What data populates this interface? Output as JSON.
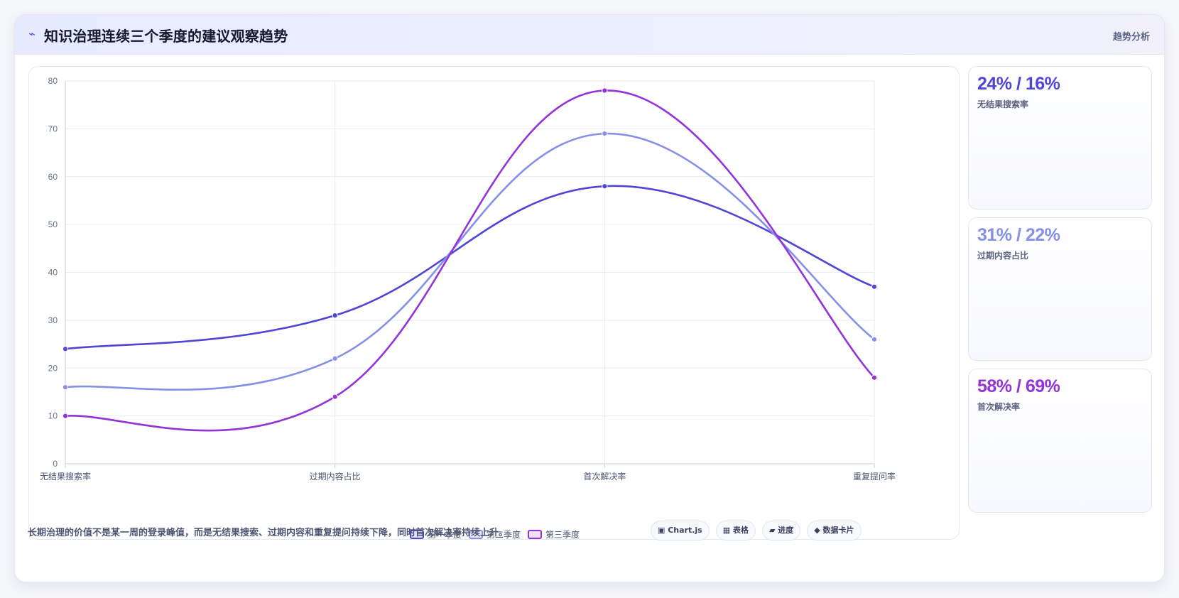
{
  "header": {
    "icon": "lightning-icon",
    "icon_glyph": "⌁",
    "title": "知识治理连续三个季度的建议观察趋势",
    "tag": "趋势分析"
  },
  "chart_data": {
    "type": "line",
    "categories": [
      "无结果搜索率",
      "过期内容占比",
      "首次解决率",
      "重复提问率"
    ],
    "series": [
      {
        "name": "第一季度",
        "values": [
          24,
          31,
          58,
          37
        ],
        "color": "#4f46d6"
      },
      {
        "name": "第二季度",
        "values": [
          16,
          22,
          69,
          26
        ],
        "color": "#8590e8"
      },
      {
        "name": "第三季度",
        "values": [
          10,
          14,
          78,
          18
        ],
        "color": "#9333d8"
      }
    ],
    "ylim": [
      0,
      80
    ],
    "yticks": [
      0,
      10,
      20,
      30,
      40,
      50,
      60,
      70,
      80
    ],
    "grid": true,
    "legend": "bottom"
  },
  "stats": [
    {
      "value": "24% / 16%",
      "label": "无结果搜索率",
      "color": "#4f46d6"
    },
    {
      "value": "31% / 22%",
      "label": "过期内容占比",
      "color": "#8590e8"
    },
    {
      "value": "58% / 69%",
      "label": "首次解决率",
      "color": "#9333d8"
    }
  ],
  "footer": {
    "note": "长期治理的价值不是某一周的登录峰值，而是无结果搜索、过期内容和重复提问持续下降，同时首次解决率持续上升。",
    "chips": [
      {
        "label": "▣ Chart.js"
      },
      {
        "label": "▦ 表格"
      },
      {
        "label": "▰ 进度"
      },
      {
        "label": "◆ 数据卡片"
      }
    ]
  }
}
